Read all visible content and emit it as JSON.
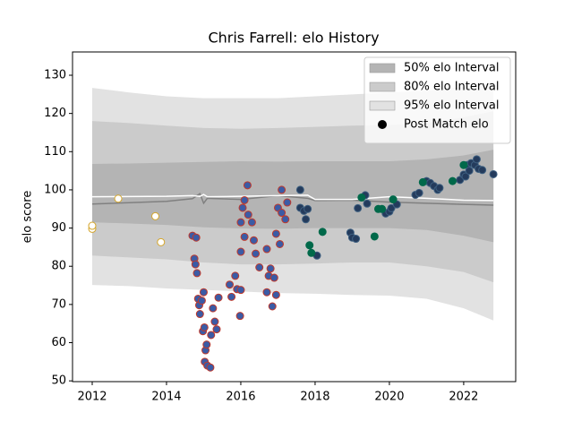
{
  "chart_data": {
    "type": "band",
    "title": "Chris Farrell: elo History",
    "ylabel": "elo score",
    "xlim": [
      2011.47,
      2023.4
    ],
    "ylim": [
      49.8,
      136.1
    ],
    "xticks": [
      2012,
      2014,
      2016,
      2018,
      2020,
      2022
    ],
    "yticks": [
      50,
      60,
      70,
      80,
      90,
      100,
      110,
      120,
      130
    ],
    "legend": "upper right",
    "x": [
      2012,
      2013,
      2014,
      2015,
      2016,
      2017,
      2018,
      2019,
      2020,
      2021,
      2022,
      2022.8
    ],
    "bands": [
      {
        "name": "50% elo Interval",
        "color": "#b4b4b4",
        "upper": [
          106.8,
          106.9,
          107.1,
          107.3,
          107.5,
          107.4,
          107.5,
          107.5,
          107.5,
          108,
          109,
          110.5
        ],
        "lower": [
          91.5,
          91.2,
          90.8,
          90.2,
          89.9,
          89.8,
          90,
          90,
          90,
          89.5,
          88,
          86.3
        ]
      },
      {
        "name": "80% elo Interval",
        "color": "#cbcbcb",
        "upper": [
          118,
          117.5,
          116.8,
          116.2,
          116,
          116.2,
          116.5,
          116.8,
          117,
          117.5,
          119,
          120.6
        ],
        "lower": [
          82.8,
          82.3,
          81.8,
          81,
          80.5,
          80.5,
          80.7,
          81,
          81,
          80,
          78.5,
          75.8
        ]
      },
      {
        "name": "95% elo Interval",
        "color": "#e2e2e2",
        "upper": [
          126.7,
          125.5,
          124.5,
          124,
          124,
          124,
          124.5,
          125,
          125.5,
          126,
          127,
          128
        ],
        "lower": [
          75.1,
          74.8,
          74.2,
          73.8,
          73.4,
          73,
          72.8,
          72.5,
          72.3,
          71.5,
          69,
          65.8
        ]
      }
    ],
    "lines": [
      {
        "color": "#808080",
        "x": [
          2012,
          2014,
          2014.7,
          2014.9,
          2015,
          2015.1,
          2016,
          2017,
          2017.8,
          2018,
          2019,
          2020,
          2021,
          2022,
          2022.8
        ],
        "values": [
          96.3,
          97,
          97.7,
          99,
          96.5,
          97.8,
          97.5,
          98.5,
          97.8,
          97.2,
          97.3,
          96.8,
          96.5,
          96.2,
          96
        ]
      },
      {
        "color": "#ffffff",
        "x": [
          2012,
          2014,
          2014.7,
          2014.9,
          2015,
          2015.1,
          2016,
          2017,
          2017.8,
          2018,
          2019,
          2020,
          2021,
          2022,
          2022.8
        ],
        "values": [
          98.2,
          98.3,
          98.5,
          98.3,
          98.8,
          98.2,
          98.3,
          98.5,
          98.6,
          97.5,
          97.5,
          98.2,
          97.8,
          97.3,
          97.2
        ]
      }
    ],
    "markers": {
      "name": "Post Match elo",
      "color": "#000000",
      "groups": [
        {
          "fill": "#ffffff",
          "edge": "#d4a52a",
          "x": [
            2012.0,
            2012.0,
            2012.7,
            2013.7,
            2013.85
          ],
          "values": [
            89.8,
            90.6,
            97.7,
            93.1,
            86.3
          ]
        },
        {
          "fill": "#3b5ba5",
          "edge": "#c0392b",
          "x": [
            2014.7,
            2014.8,
            2014.75,
            2014.78,
            2014.82,
            2014.85,
            2014.88,
            2014.9,
            2014.95,
            2015.0,
            2014.98,
            2015.02,
            2015.03,
            2015.05,
            2015.08,
            2015.1,
            2015.18,
            2015.2,
            2015.25,
            2015.3,
            2015.35,
            2015.4,
            2015.7,
            2015.75,
            2015.85,
            2015.9,
            2015.98,
            2016.0,
            2016.0,
            2016.0,
            2016.05,
            2016.1,
            2016.1,
            2016.18,
            2016.2,
            2016.3,
            2016.35,
            2016.4,
            2016.5,
            2016.7,
            2016.7,
            2016.75,
            2016.8,
            2016.85,
            2016.9,
            2016.95,
            2016.95,
            2017.0,
            2017.05,
            2017.1,
            2017.1,
            2017.2,
            2017.25
          ],
          "values": [
            88,
            87.5,
            82,
            80.5,
            78.2,
            71.5,
            69.8,
            67.5,
            71,
            73.2,
            63,
            64,
            55,
            58,
            59.5,
            54,
            53.5,
            62,
            69,
            65.5,
            63.5,
            71.8,
            75.2,
            72,
            77.5,
            74,
            67,
            73.8,
            83.8,
            91.5,
            95.3,
            97.3,
            87.7,
            101.2,
            93.5,
            91.5,
            86.8,
            83.3,
            79.7,
            84.5,
            73.2,
            77.5,
            79.4,
            69.5,
            77,
            72.5,
            88.5,
            95.3,
            85.8,
            100,
            94,
            92.3,
            96.7
          ]
        },
        {
          "fill": "#243b5c",
          "edge": "#3d5f80",
          "x": [
            2017.6,
            2017.6,
            2017.7,
            2017.75,
            2017.8,
            2018.05,
            2018.95,
            2019.0,
            2019.1,
            2019.15,
            2019.35,
            2019.4,
            2019.9,
            2020.0,
            2020.05,
            2020.2,
            2020.7,
            2020.8,
            2021.0,
            2021.1,
            2021.2,
            2021.3,
            2021.35,
            2021.9,
            2022.0,
            2022.05,
            2022.1,
            2022.15,
            2022.2,
            2022.3,
            2022.35,
            2022.4,
            2022.5,
            2022.8
          ],
          "values": [
            100,
            95.3,
            94.5,
            92.3,
            95,
            82.8,
            88.8,
            87.5,
            87.2,
            95.2,
            98.6,
            96.4,
            93.8,
            94.3,
            95.2,
            96.2,
            98.7,
            99.2,
            102.3,
            101.8,
            101,
            100,
            100.5,
            102.6,
            104,
            103.5,
            106.5,
            105,
            107,
            106.5,
            108,
            105.5,
            105.2,
            104.1
          ]
        },
        {
          "fill": "#00694a",
          "edge": "#00694a",
          "x": [
            2017.85,
            2017.9,
            2018.2,
            2019.25,
            2019.6,
            2019.7,
            2019.8,
            2020.1,
            2020.9,
            2021.7,
            2022.0
          ],
          "values": [
            85.5,
            83.5,
            89,
            98,
            87.8,
            95,
            95,
            97.5,
            102,
            102.3,
            106.5
          ]
        }
      ]
    }
  }
}
